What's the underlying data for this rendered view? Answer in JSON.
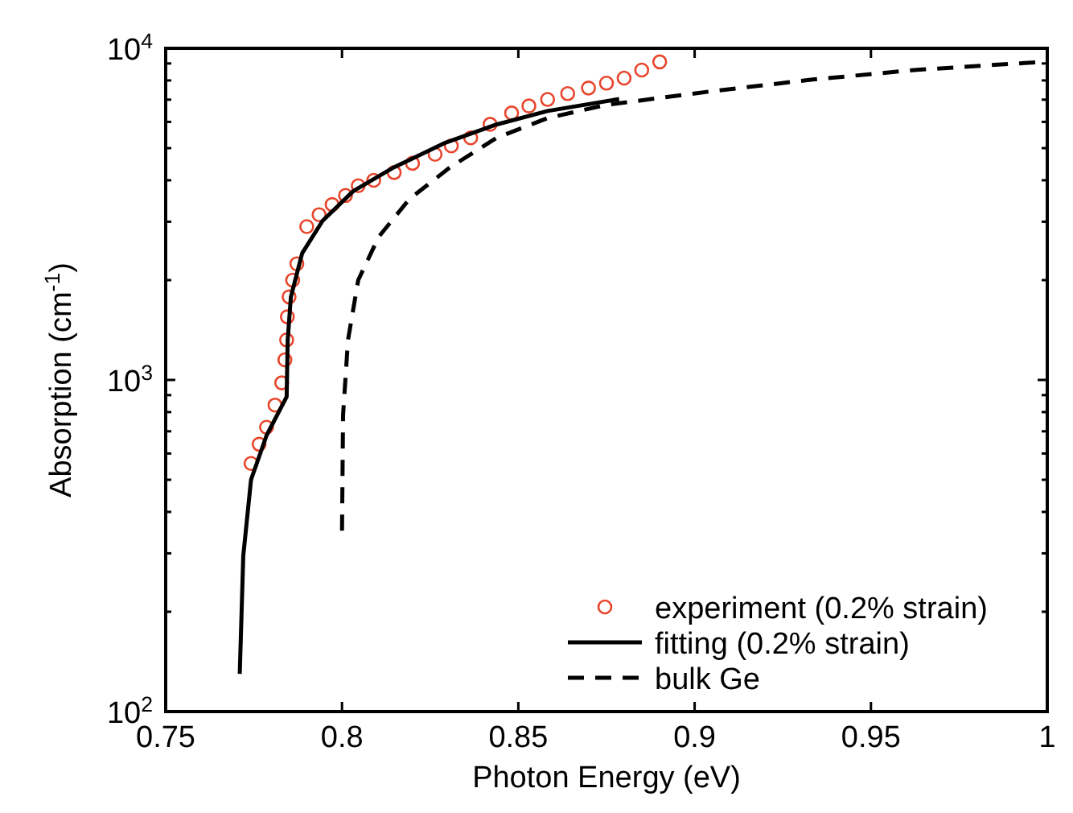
{
  "chart_data": {
    "type": "line",
    "xlabel": "Photon Energy (eV)",
    "ylabel": "Absorption (cm$^{-1}$)",
    "log": "y",
    "xlim": [
      0.75,
      1
    ],
    "xticks": [
      0.75,
      0.8,
      0.85,
      0.9,
      0.95,
      1
    ],
    "ylim": [
      100,
      10000
    ],
    "yticks": [
      {
        "value": 100,
        "label": "10$^{2}$"
      },
      {
        "value": 200,
        "label": null
      },
      {
        "value": 300,
        "label": null
      },
      {
        "value": 400,
        "label": null
      },
      {
        "value": 500,
        "label": null
      },
      {
        "value": 600,
        "label": null
      },
      {
        "value": 700,
        "label": null
      },
      {
        "value": 800,
        "label": null
      },
      {
        "value": 900,
        "label": null
      },
      {
        "value": 1000,
        "label": "10$^{3}$"
      },
      {
        "value": 2000,
        "label": null
      },
      {
        "value": 3000,
        "label": null
      },
      {
        "value": 4000,
        "label": null
      },
      {
        "value": 5000,
        "label": null
      },
      {
        "value": 6000,
        "label": null
      },
      {
        "value": 7000,
        "label": null
      },
      {
        "value": 8000,
        "label": null
      },
      {
        "value": 9000,
        "label": null
      },
      {
        "value": 10000,
        "label": "10$^{4}$"
      }
    ],
    "grid": false,
    "legend": "bottom right",
    "series": [
      {
        "name": "experiment (0.2% strain)",
        "type": "scatter",
        "marker": "circle",
        "color": "#e8452c",
        "x": [
          0.7742,
          0.7765,
          0.7786,
          0.781,
          0.7829,
          0.7838,
          0.7843,
          0.7845,
          0.785,
          0.786,
          0.7872,
          0.79,
          0.7935,
          0.7972,
          0.801,
          0.8046,
          0.809,
          0.8148,
          0.82,
          0.8264,
          0.831,
          0.8365,
          0.842,
          0.8481,
          0.853,
          0.8583,
          0.864,
          0.8699,
          0.875,
          0.88,
          0.885,
          0.8901
        ],
        "values": [
          560,
          640,
          720,
          840,
          980,
          1150,
          1320,
          1550,
          1780,
          2000,
          2240,
          2900,
          3150,
          3380,
          3600,
          3850,
          4000,
          4220,
          4500,
          4790,
          5080,
          5370,
          5900,
          6380,
          6700,
          7010,
          7300,
          7590,
          7850,
          8130,
          8600,
          9100
        ]
      },
      {
        "name": "fitting (0.2% strain)",
        "type": "line",
        "line_style": "solid",
        "color": "#000000",
        "x": [
          0.771,
          0.772,
          0.7742,
          0.7786,
          0.7843,
          0.7846,
          0.7855,
          0.7887,
          0.7945,
          0.8032,
          0.8148,
          0.8293,
          0.8438,
          0.8583,
          0.8786
        ],
        "values": [
          130,
          295,
          500,
          680,
          890,
          1320,
          1780,
          2410,
          3020,
          3710,
          4380,
          5190,
          5890,
          6470,
          7030
        ]
      },
      {
        "name": "bulk Ge",
        "type": "line",
        "line_style": "dashed",
        "color": "#000000",
        "x": [
          0.8,
          0.8003,
          0.8017,
          0.8046,
          0.8104,
          0.8191,
          0.8307,
          0.8438,
          0.8583,
          0.8749,
          0.9043,
          0.9335,
          0.963,
          1.0
        ],
        "values": [
          351,
          783,
          1320,
          2000,
          2700,
          3510,
          4380,
          5370,
          6160,
          6750,
          7410,
          8050,
          8610,
          9120
        ]
      }
    ]
  }
}
